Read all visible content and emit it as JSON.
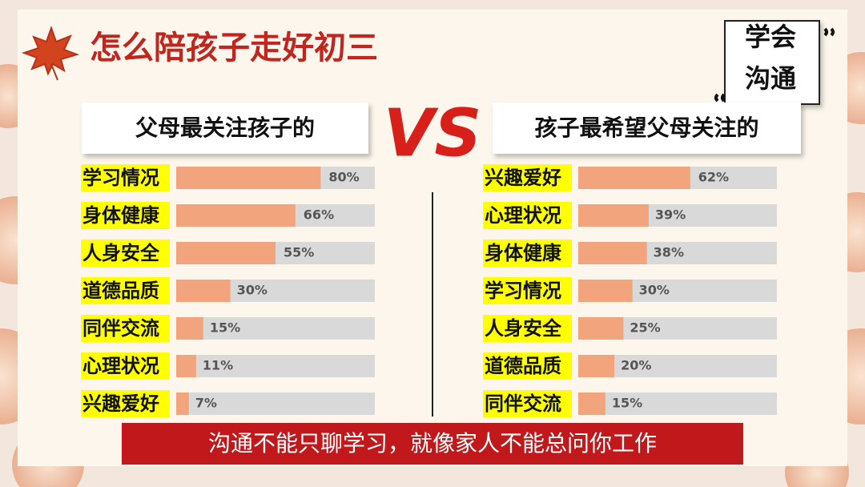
{
  "header": {
    "title": "怎么陪孩子走好初三"
  },
  "badge": {
    "lines": [
      "学会",
      "沟通"
    ]
  },
  "vs": "VS",
  "footer": "沟通不能只聊学习，就像家人不能总问你工作",
  "chart_data": [
    {
      "type": "bar",
      "orientation": "horizontal",
      "title": "父母最关注孩子的",
      "categories": [
        "学习情况",
        "身体健康",
        "人身安全",
        "道德品质",
        "同伴交流",
        "心理状况",
        "兴趣爱好"
      ],
      "values": [
        80,
        66,
        55,
        30,
        15,
        11,
        7
      ],
      "value_labels": [
        "80%",
        "66%",
        "55%",
        "30%",
        "15%",
        "11%",
        "7%"
      ],
      "xlim": [
        0,
        110
      ],
      "color": "#f2a47c",
      "track_color": "#d9d9d9"
    },
    {
      "type": "bar",
      "orientation": "horizontal",
      "title": "孩子最希望父母关注的",
      "categories": [
        "兴趣爱好",
        "心理状况",
        "身体健康",
        "学习情况",
        "人身安全",
        "道德品质",
        "同伴交流"
      ],
      "values": [
        62,
        39,
        38,
        30,
        25,
        20,
        15
      ],
      "value_labels": [
        "62%",
        "39%",
        "38%",
        "30%",
        "25%",
        "20%",
        "15%"
      ],
      "xlim": [
        0,
        110
      ],
      "color": "#f2a47c",
      "track_color": "#d9d9d9"
    }
  ]
}
